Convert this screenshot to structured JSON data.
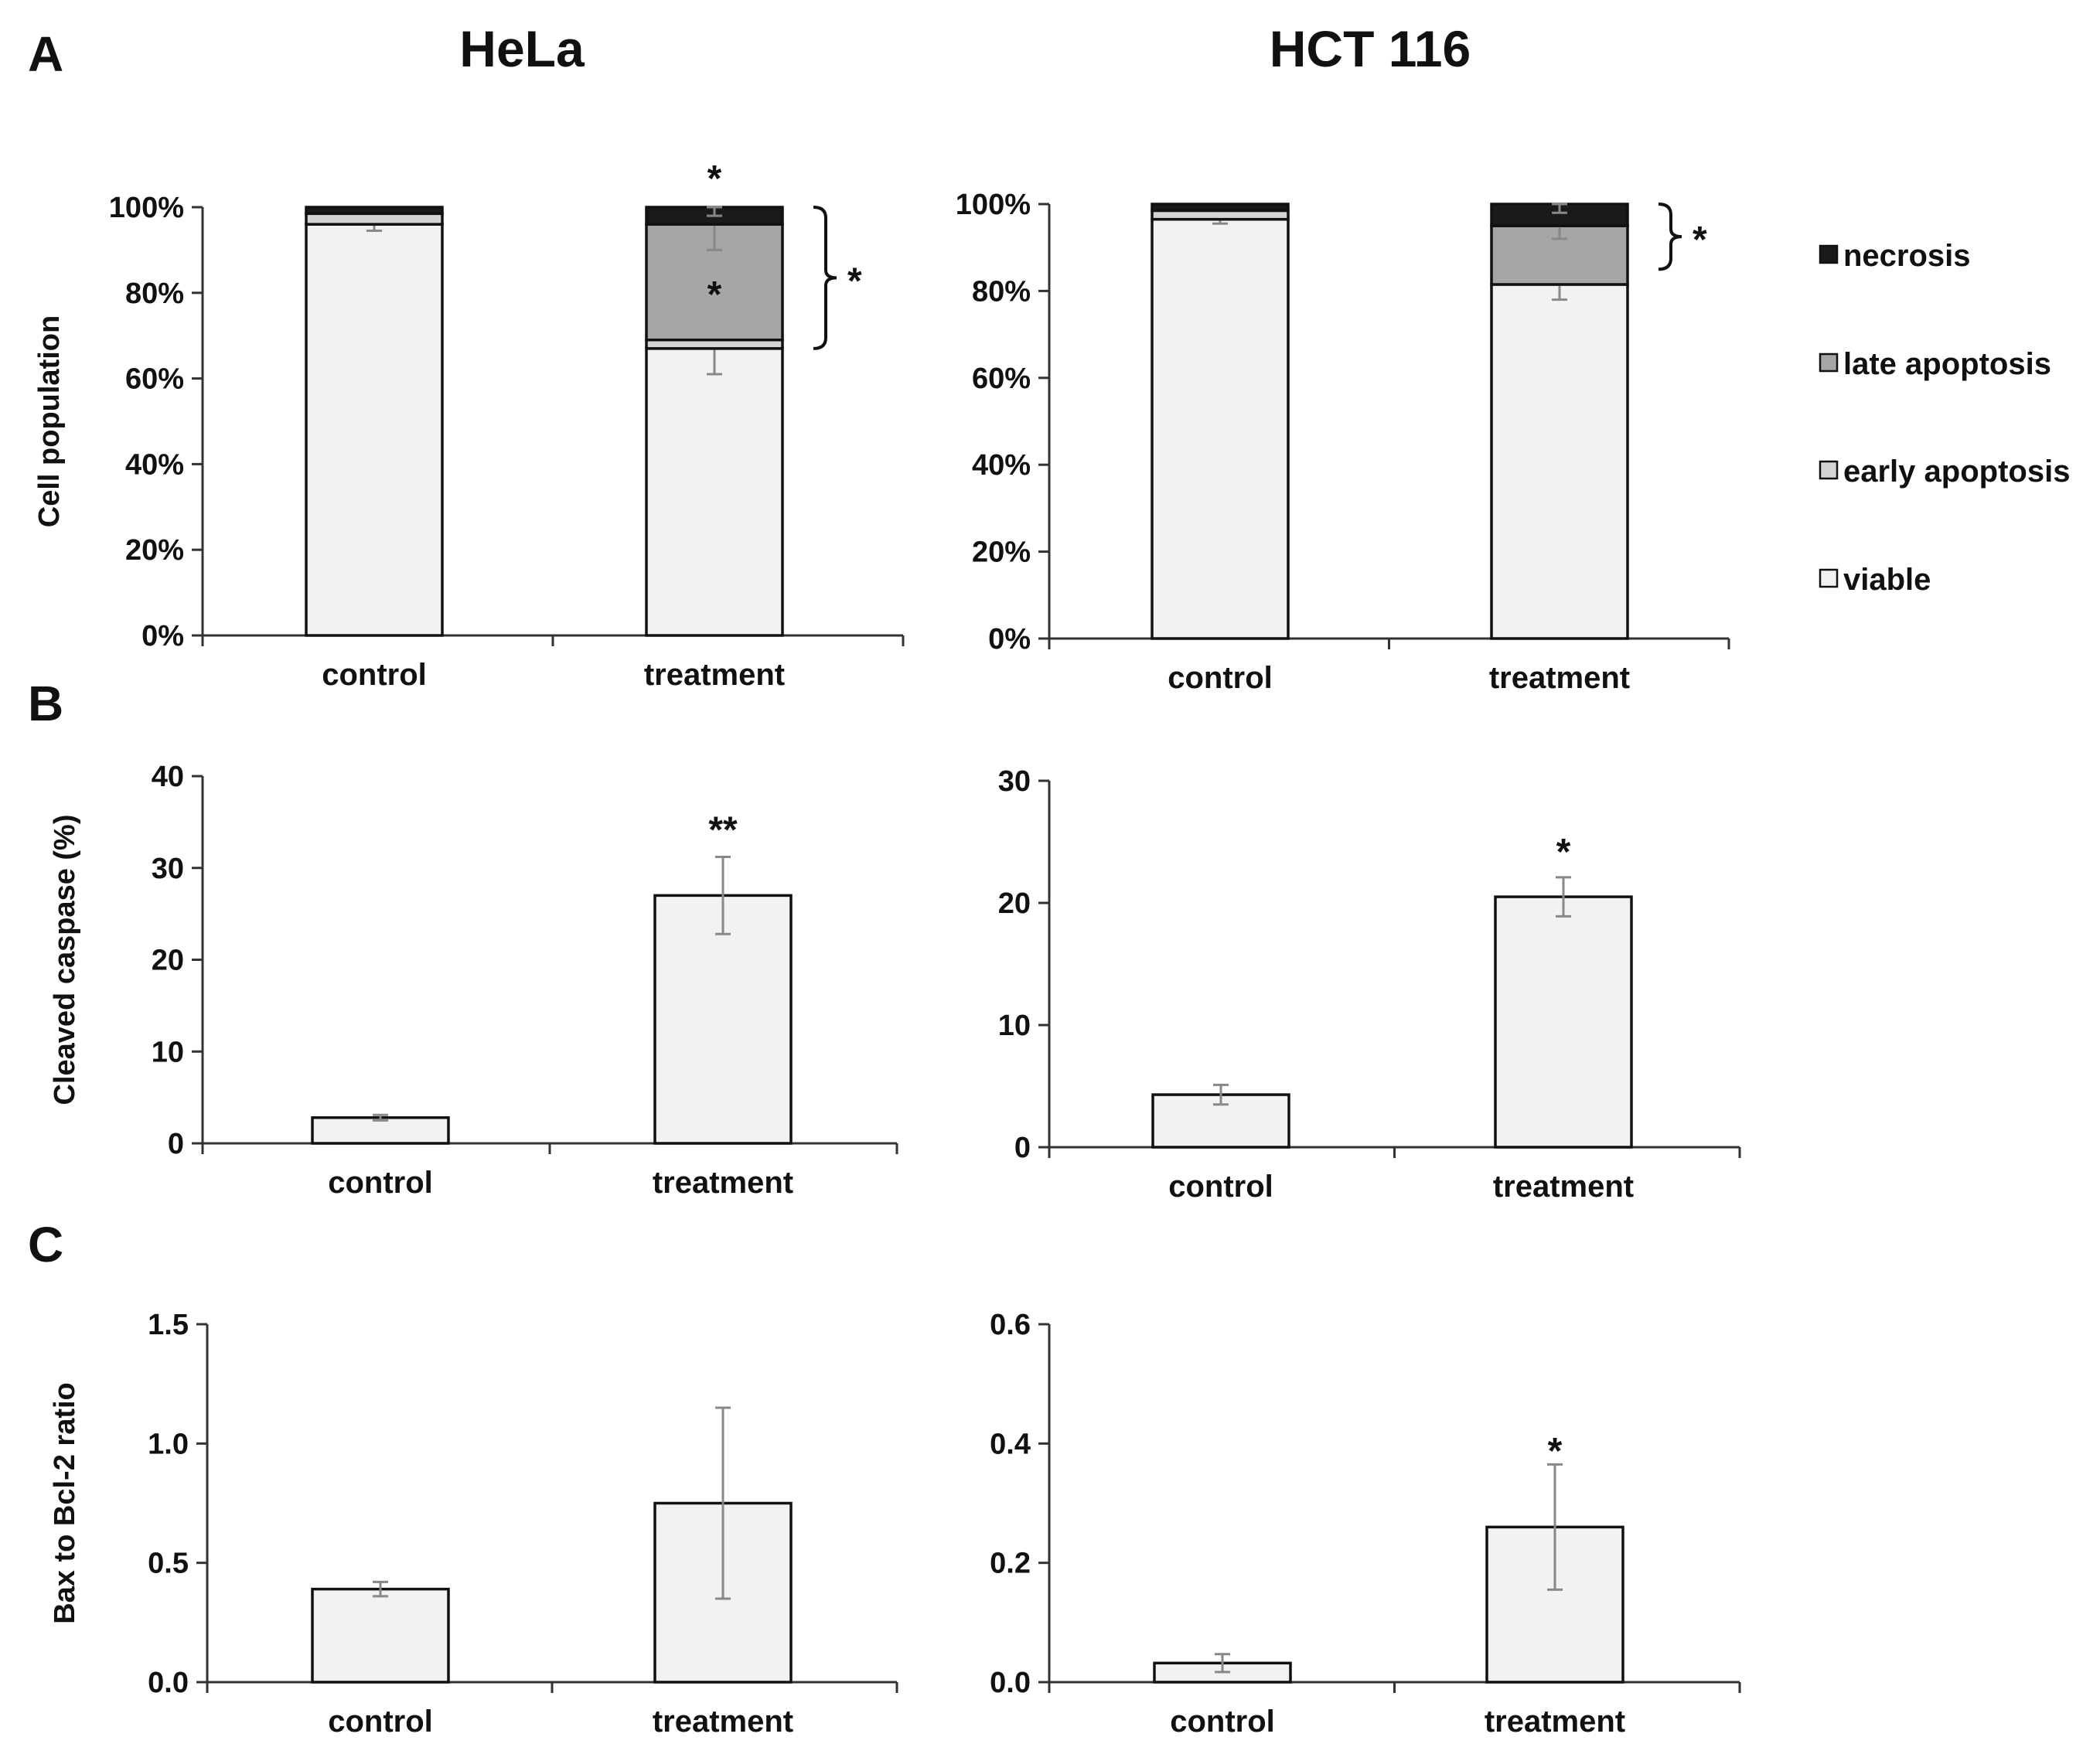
{
  "panel_labels": [
    "A",
    "B",
    "C"
  ],
  "column_titles": [
    "HeLa",
    "HCT 116"
  ],
  "colors": {
    "viable": "#f2f2f2",
    "early_apoptosis": "#d4d4d4",
    "late_apoptosis": "#a6a6a6",
    "necrosis": "#1a1a1a",
    "bar_fill": "#f2f2f2",
    "outline": "#111111",
    "errorbar": "#888888"
  },
  "legend": {
    "items": [
      {
        "label": "necrosis",
        "key": "necrosis"
      },
      {
        "label": "late apoptosis",
        "key": "late_apoptosis"
      },
      {
        "label": "early apoptosis",
        "key": "early_apoptosis"
      },
      {
        "label": "viable",
        "key": "viable"
      }
    ]
  },
  "chart_data": [
    {
      "id": "A-HeLa",
      "type": "bar",
      "stacked": true,
      "column": "HeLa",
      "ylabel": "Cell population",
      "ylim": [
        0,
        100
      ],
      "yticks": [
        0,
        20,
        40,
        60,
        80,
        100
      ],
      "ytick_labels": [
        "0%",
        "20%",
        "40%",
        "60%",
        "80%",
        "100%"
      ],
      "categories": [
        "control",
        "treatment"
      ],
      "series": [
        {
          "name": "viable",
          "key": "viable",
          "values": [
            96,
            67
          ],
          "errors": [
            1.5,
            6
          ]
        },
        {
          "name": "early apoptosis",
          "key": "early_apoptosis",
          "values": [
            2.5,
            2
          ],
          "errors": [
            0,
            0
          ]
        },
        {
          "name": "late apoptosis",
          "key": "late_apoptosis",
          "values": [
            0,
            27
          ],
          "errors": [
            0,
            6
          ]
        },
        {
          "name": "necrosis",
          "key": "necrosis",
          "values": [
            1.5,
            4
          ],
          "errors": [
            0,
            2
          ]
        }
      ],
      "annotations": [
        {
          "category": "treatment",
          "value": 107,
          "text": "*"
        },
        {
          "category": "treatment",
          "value": 80,
          "text": "*"
        }
      ],
      "bracket": {
        "from": 67,
        "to": 100,
        "text": "*"
      }
    },
    {
      "id": "A-HCT116",
      "type": "bar",
      "stacked": true,
      "column": "HCT 116",
      "ylabel": "",
      "ylim": [
        0,
        100
      ],
      "yticks": [
        0,
        20,
        40,
        60,
        80,
        100
      ],
      "ytick_labels": [
        "0%",
        "20%",
        "40%",
        "60%",
        "80%",
        "100%"
      ],
      "categories": [
        "control",
        "treatment"
      ],
      "series": [
        {
          "name": "viable",
          "key": "viable",
          "values": [
            96.5,
            81.5
          ],
          "errors": [
            1,
            3.5
          ]
        },
        {
          "name": "early apoptosis",
          "key": "early_apoptosis",
          "values": [
            2,
            0
          ],
          "errors": [
            0,
            0
          ]
        },
        {
          "name": "late apoptosis",
          "key": "late_apoptosis",
          "values": [
            0,
            13.5
          ],
          "errors": [
            0,
            3
          ]
        },
        {
          "name": "necrosis",
          "key": "necrosis",
          "values": [
            1.5,
            5
          ],
          "errors": [
            0,
            2
          ]
        }
      ],
      "annotations": [],
      "bracket": {
        "from": 85,
        "to": 100,
        "text": "*"
      }
    },
    {
      "id": "B-HeLa",
      "type": "bar",
      "column": "HeLa",
      "ylabel": "Cleaved caspase (%)",
      "ylim": [
        0,
        40
      ],
      "yticks": [
        0,
        10,
        20,
        30,
        40
      ],
      "ytick_labels": [
        "0",
        "10",
        "20",
        "30",
        "40"
      ],
      "categories": [
        "control",
        "treatment"
      ],
      "values": [
        2.8,
        27
      ],
      "errors": [
        0.3,
        4.2
      ],
      "annotations": [
        {
          "category": "treatment",
          "value": 34.3,
          "text": "**"
        }
      ]
    },
    {
      "id": "B-HCT116",
      "type": "bar",
      "column": "HCT 116",
      "ylabel": "",
      "ylim": [
        0,
        30
      ],
      "yticks": [
        0,
        10,
        20,
        30
      ],
      "ytick_labels": [
        "0",
        "10",
        "20",
        "30"
      ],
      "categories": [
        "control",
        "treatment"
      ],
      "values": [
        4.3,
        20.5
      ],
      "errors": [
        0.8,
        1.6
      ],
      "annotations": [
        {
          "category": "treatment",
          "value": 24.3,
          "text": "*"
        }
      ]
    },
    {
      "id": "C-HeLa",
      "type": "bar",
      "column": "HeLa",
      "ylabel": "Bax to Bcl-2 ratio",
      "ylim": [
        0,
        1.5
      ],
      "yticks": [
        0,
        0.5,
        1.0,
        1.5
      ],
      "ytick_labels": [
        "0.0",
        "0.5",
        "1.0",
        "1.5"
      ],
      "categories": [
        "control",
        "treatment"
      ],
      "values": [
        0.39,
        0.75
      ],
      "errors": [
        0.03,
        0.4
      ],
      "annotations": []
    },
    {
      "id": "C-HCT116",
      "type": "bar",
      "column": "HCT 116",
      "ylabel": "",
      "ylim": [
        0,
        0.6
      ],
      "yticks": [
        0,
        0.2,
        0.4,
        0.6
      ],
      "ytick_labels": [
        "0.0",
        "0.2",
        "0.4",
        "0.6"
      ],
      "categories": [
        "control",
        "treatment"
      ],
      "values": [
        0.032,
        0.26
      ],
      "errors": [
        0.015,
        0.105
      ],
      "annotations": [
        {
          "category": "treatment",
          "value": 0.39,
          "text": "*"
        }
      ]
    }
  ]
}
